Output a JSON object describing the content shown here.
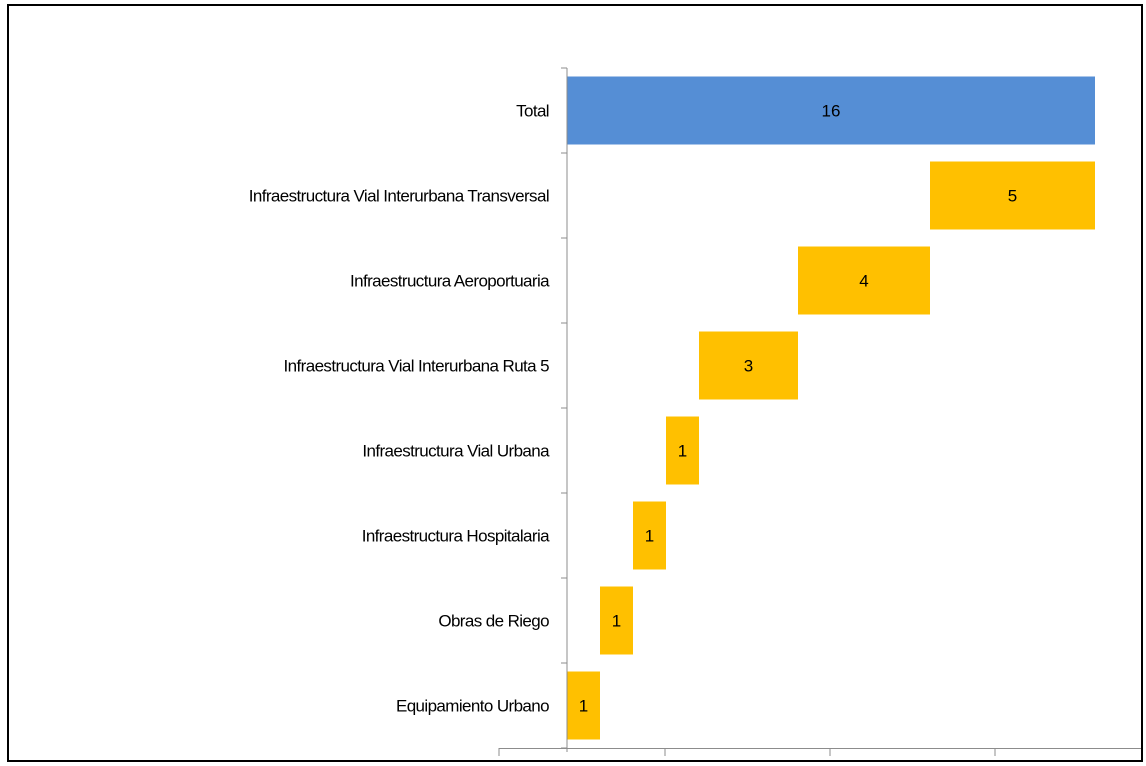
{
  "chart_data": {
    "type": "bar",
    "subtype": "waterfall-horizontal",
    "categories": [
      "Total",
      "Infraestructura Vial Interurbana Transversal",
      "Infraestructura Aeroportuaria",
      "Infraestructura Vial Interurbana Ruta 5",
      "Infraestructura Vial Urbana",
      "Infraestructura Hospitalaria",
      "Obras de Riego",
      "Equipamiento Urbano"
    ],
    "values": [
      16,
      5,
      4,
      3,
      1,
      1,
      1,
      1
    ],
    "is_total": [
      true,
      false,
      false,
      false,
      false,
      false,
      false,
      false
    ],
    "data_labels": [
      "16",
      "5",
      "4",
      "3",
      "1",
      "1",
      "1",
      "1"
    ],
    "title": "",
    "xlabel": "",
    "ylabel": "",
    "xlim": [
      0,
      16
    ],
    "grid": false,
    "legend": "none",
    "colors": {
      "total": "#558ED5",
      "component": "#FFC000"
    }
  }
}
